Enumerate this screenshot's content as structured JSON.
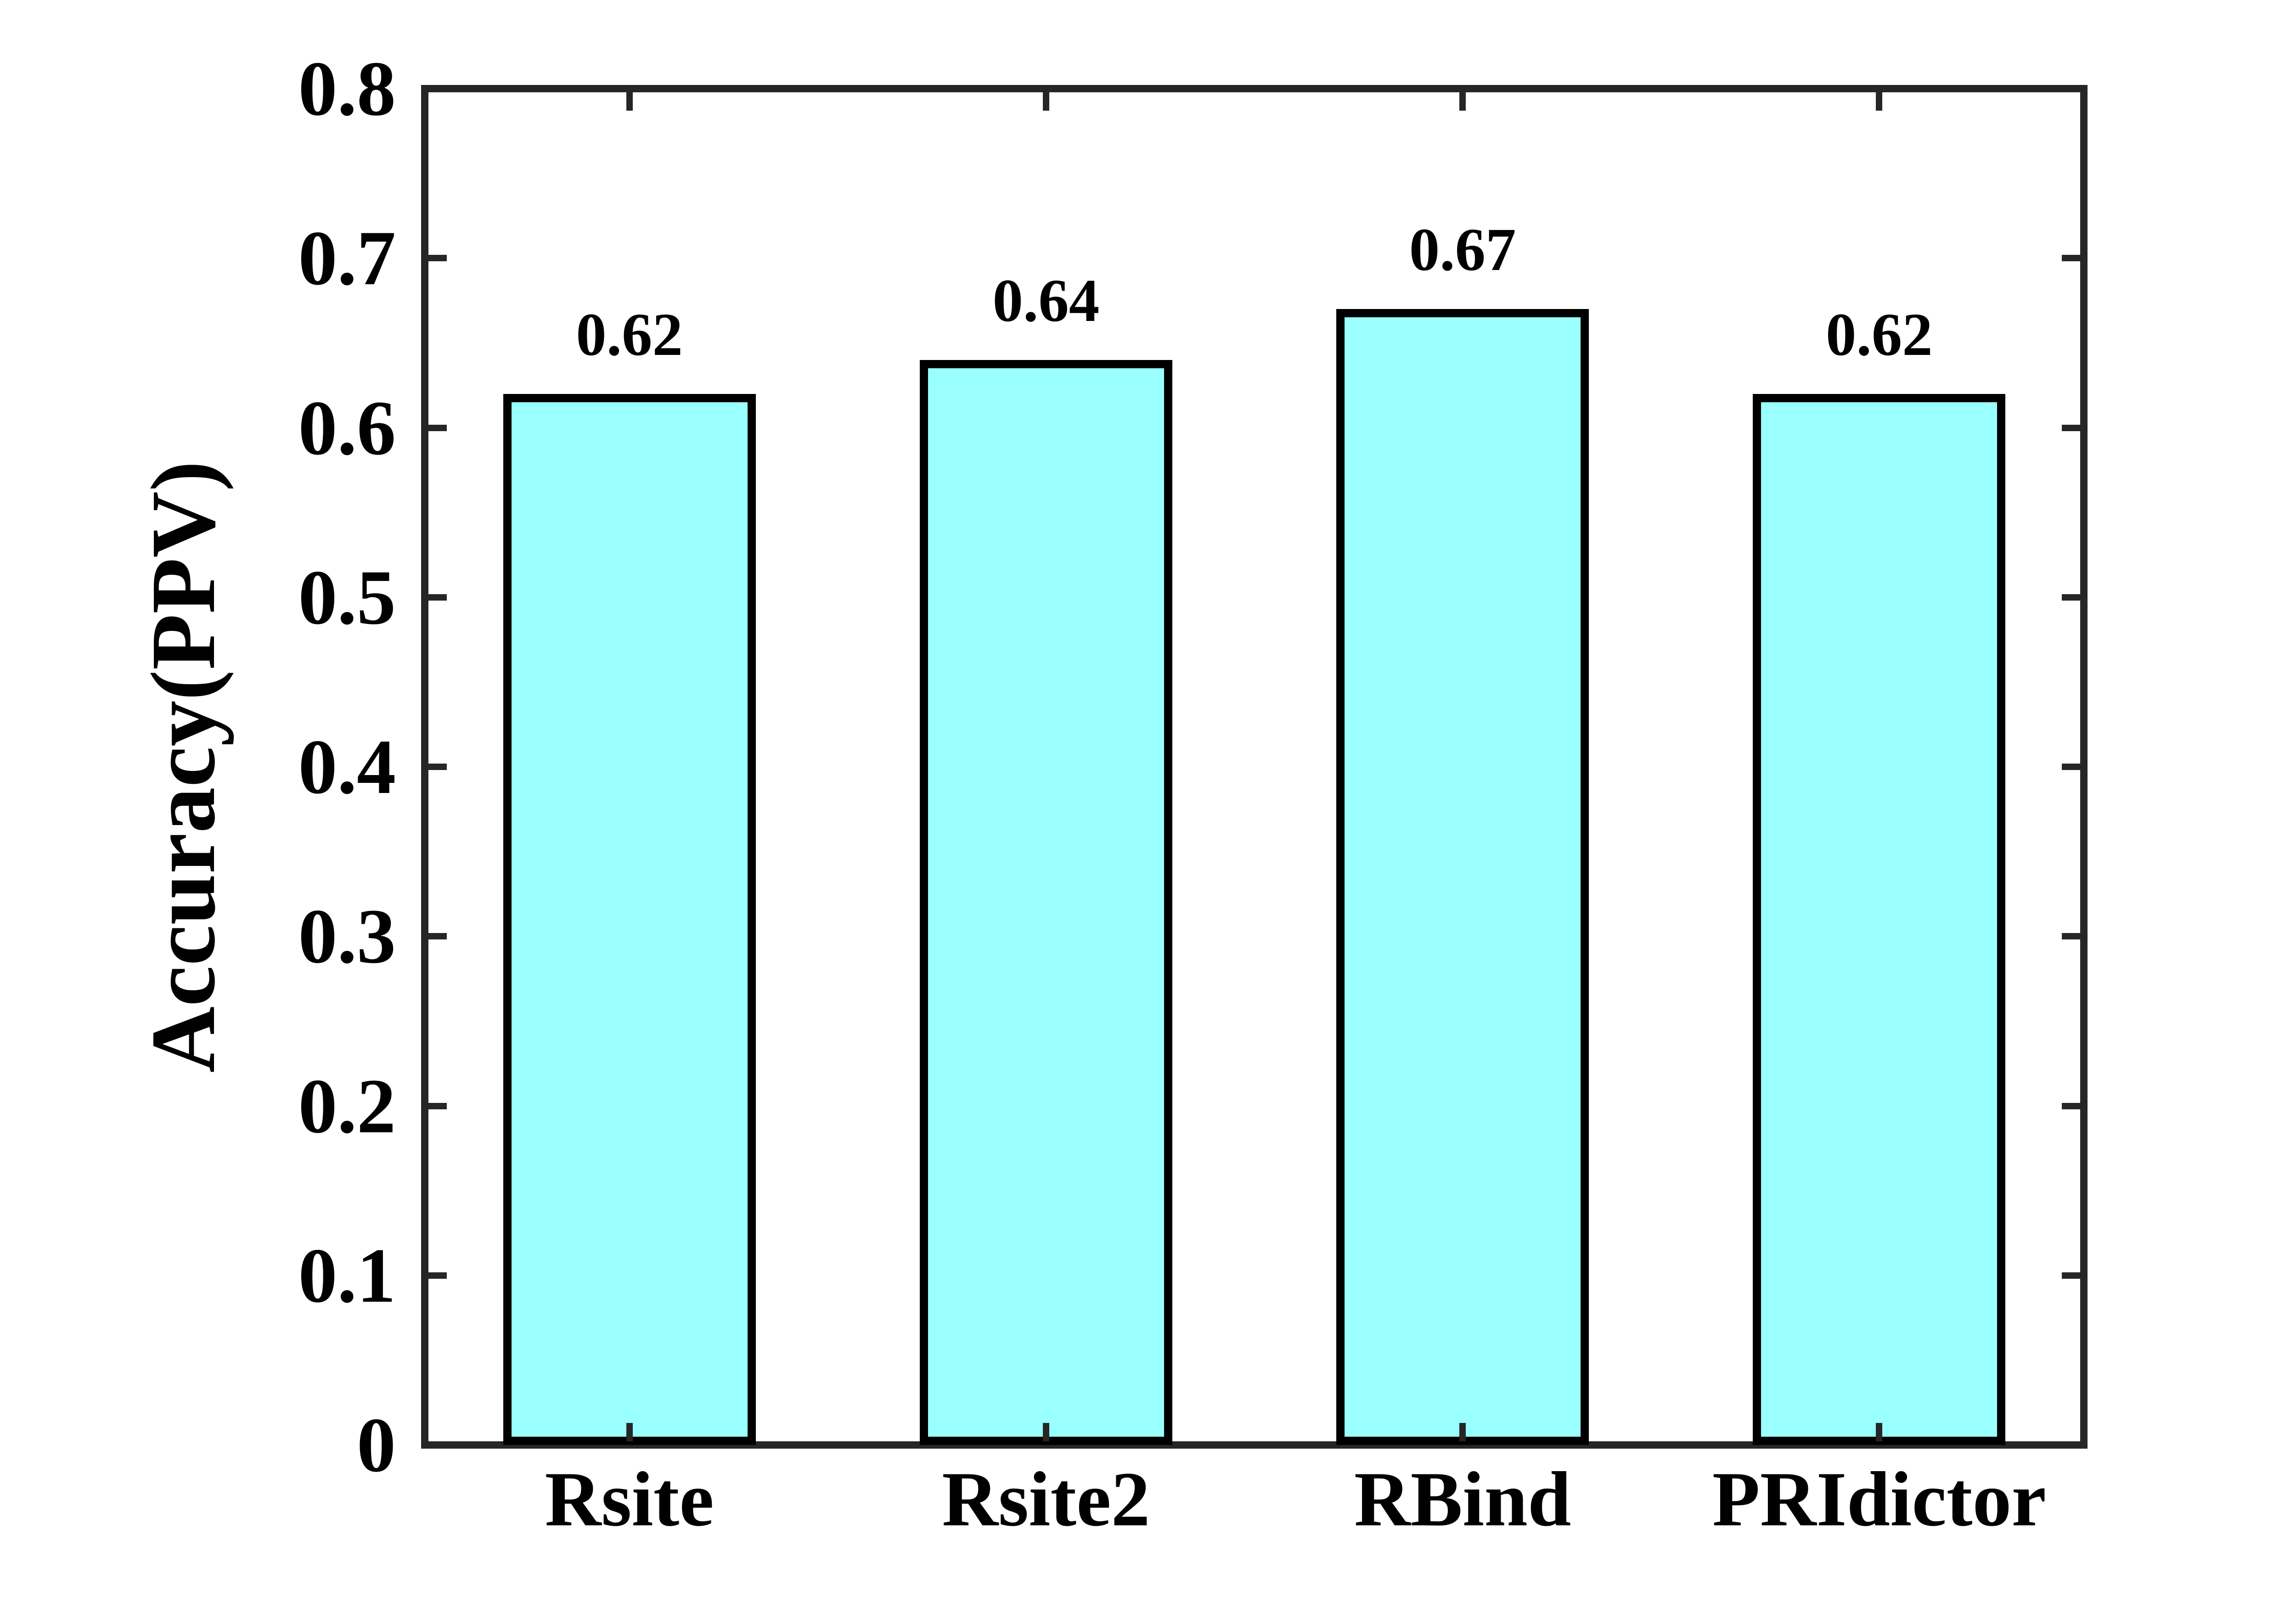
{
  "chart_data": {
    "type": "bar",
    "title": "",
    "xlabel": "",
    "ylabel": "Accuracy(PPV)",
    "categories": [
      "Rsite",
      "Rsite2",
      "RBind",
      "PRIdictor"
    ],
    "values": [
      0.62,
      0.64,
      0.67,
      0.62
    ],
    "value_labels": [
      "0.62",
      "0.64",
      "0.67",
      "0.62"
    ],
    "ylim": [
      0,
      0.8
    ],
    "yticks": [
      0,
      0.1,
      0.2,
      0.3,
      0.4,
      0.5,
      0.6,
      0.7,
      0.8
    ],
    "ytick_labels": [
      "0",
      "0.1",
      "0.2",
      "0.3",
      "0.4",
      "0.5",
      "0.6",
      "0.7",
      "0.8"
    ],
    "grid": false,
    "legend": null,
    "tick_direction": "in",
    "box": true,
    "bar_fill_color": "#99FFFF",
    "bar_edge_color": "#000000",
    "axis_color": "#262626",
    "text_color": "#000000",
    "background_color": "#FFFFFF"
  }
}
